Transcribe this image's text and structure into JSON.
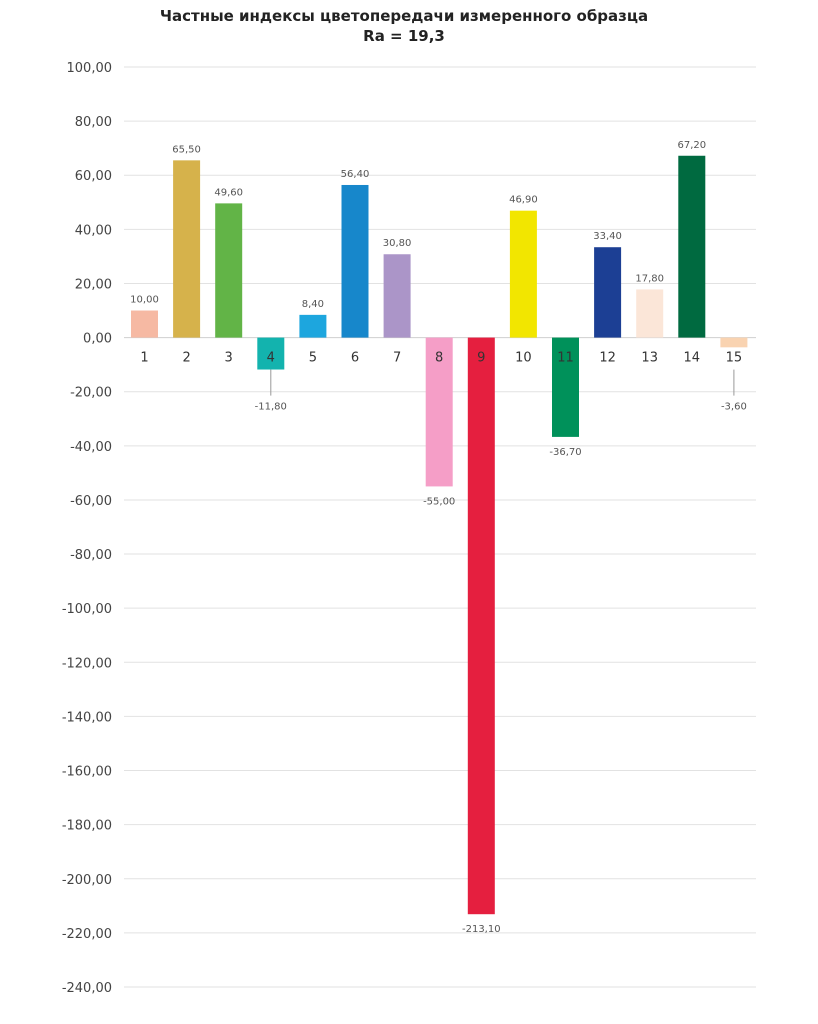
{
  "chart_data": {
    "type": "bar",
    "title": "Частные индексы цветопередачи  измеренного образца",
    "subtitle": "Ra = 19,3",
    "xlabel": "",
    "ylabel": "",
    "ylim": [
      -240,
      100
    ],
    "yticks": [
      100,
      80,
      60,
      40,
      20,
      0,
      -20,
      -40,
      -60,
      -80,
      -100,
      -120,
      -140,
      -160,
      -180,
      -200,
      -220,
      -240
    ],
    "ytick_labels": [
      "100,00",
      "80,00",
      "60,00",
      "40,00",
      "20,00",
      "0,00",
      "-20,00",
      "-40,00",
      "-60,00",
      "-80,00",
      "-100,00",
      "-120,00",
      "-140,00",
      "-160,00",
      "-180,00",
      "-200,00",
      "-220,00",
      "-240,00"
    ],
    "grid": true,
    "legend": "none",
    "categories": [
      "1",
      "2",
      "3",
      "4",
      "5",
      "6",
      "7",
      "8",
      "9",
      "10",
      "11",
      "12",
      "13",
      "14",
      "15"
    ],
    "values": [
      10.0,
      65.5,
      49.6,
      -11.8,
      8.4,
      56.4,
      30.8,
      -55.0,
      -213.1,
      46.9,
      -36.7,
      33.4,
      17.8,
      67.2,
      -3.6
    ],
    "value_labels": [
      "10,00",
      "65,50",
      "49,60",
      "-11,80",
      "8,40",
      "56,40",
      "30,80",
      "-55,00",
      "-213,10",
      "46,90",
      "-36,70",
      "33,40",
      "17,80",
      "67,20",
      "-3,60"
    ],
    "colors": [
      "#F6B9A3",
      "#D6B24B",
      "#62B447",
      "#13B3AE",
      "#1DA6DE",
      "#1787CB",
      "#AB95C8",
      "#F59EC7",
      "#E51F3F",
      "#F2E600",
      "#00915A",
      "#1C3F94",
      "#FBE6D8",
      "#006A40",
      "#F9D3B1"
    ]
  }
}
